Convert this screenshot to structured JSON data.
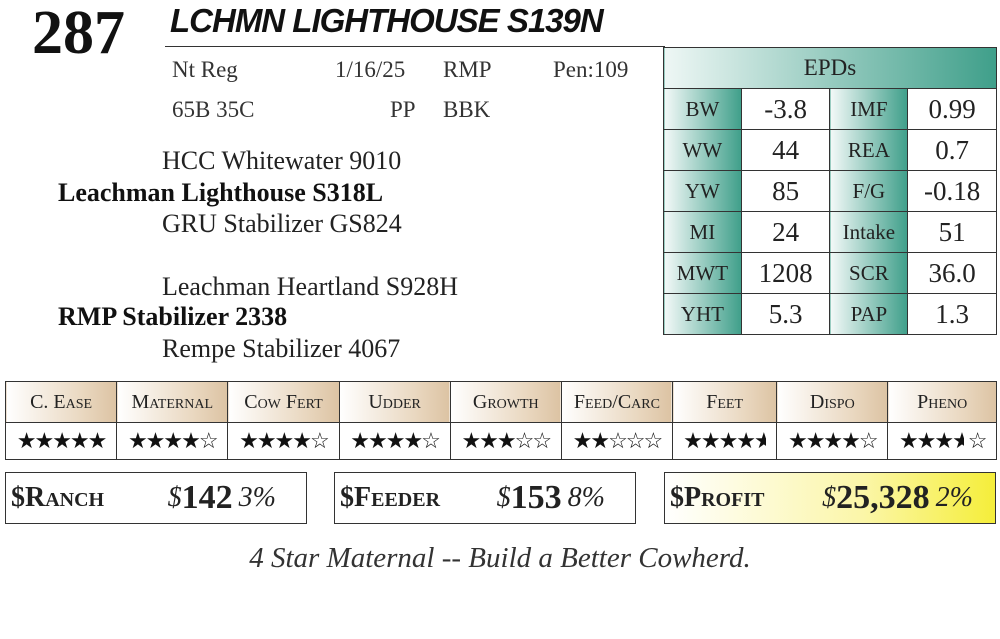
{
  "lot_number": "287",
  "animal_name": "LCHMN LIGHTHOUSE S139N",
  "info": {
    "registry": "Nt Reg",
    "birth_date": "1/16/25",
    "breeder": "RMP",
    "pen": "Pen:109",
    "color_code": "65B 35C",
    "polled": "PP",
    "coat": "BBK"
  },
  "pedigree": {
    "sire_sire": "HCC Whitewater 9010",
    "sire": "Leachman Lighthouse S318L",
    "sire_dam": "GRU Stabilizer GS824",
    "dam_sire": "Leachman Heartland S928H",
    "dam": "RMP Stabilizer 2338",
    "dam_dam": "Rempe Stabilizer 4067"
  },
  "epds": {
    "header": "EPDs",
    "rows": [
      {
        "l1": "BW",
        "v1": "-3.8",
        "l2": "IMF",
        "v2": "0.99"
      },
      {
        "l1": "WW",
        "v1": "44",
        "l2": "REA",
        "v2": "0.7"
      },
      {
        "l1": "YW",
        "v1": "85",
        "l2": "F/G",
        "v2": "-0.18"
      },
      {
        "l1": "MI",
        "v1": "24",
        "l2": "Intake",
        "v2": "51"
      },
      {
        "l1": "MWT",
        "v1": "1208",
        "l2": "SCR",
        "v2": "36.0"
      },
      {
        "l1": "YHT",
        "v1": "5.3",
        "l2": "PAP",
        "v2": "1.3"
      }
    ]
  },
  "traits": [
    {
      "label": "C. Ease",
      "stars": 5
    },
    {
      "label": "Maternal",
      "stars": 4
    },
    {
      "label": "Cow Fert",
      "stars": 4
    },
    {
      "label": "Udder",
      "stars": 4
    },
    {
      "label": "Growth",
      "stars": 3
    },
    {
      "label": "Feed/Carc",
      "stars": 2
    },
    {
      "label": "Feet",
      "stars": 4.5
    },
    {
      "label": "Dispo",
      "stars": 4
    },
    {
      "label": "Pheno",
      "stars": 3.5
    }
  ],
  "indexes": [
    {
      "name": "$Ranch",
      "amount": "142",
      "percent": "3%"
    },
    {
      "name": "$Feeder",
      "amount": "153",
      "percent": "8%"
    },
    {
      "name": "$Profit",
      "amount": "25,328",
      "percent": "2%"
    }
  ],
  "currency_symbol": "$",
  "tagline": "4 Star Maternal -- Build a Better Cowherd.",
  "colors": {
    "epd_accent": "#3f9f8a",
    "trait_header": "#dcc3a3",
    "profit_highlight": "#f5ee3a"
  }
}
